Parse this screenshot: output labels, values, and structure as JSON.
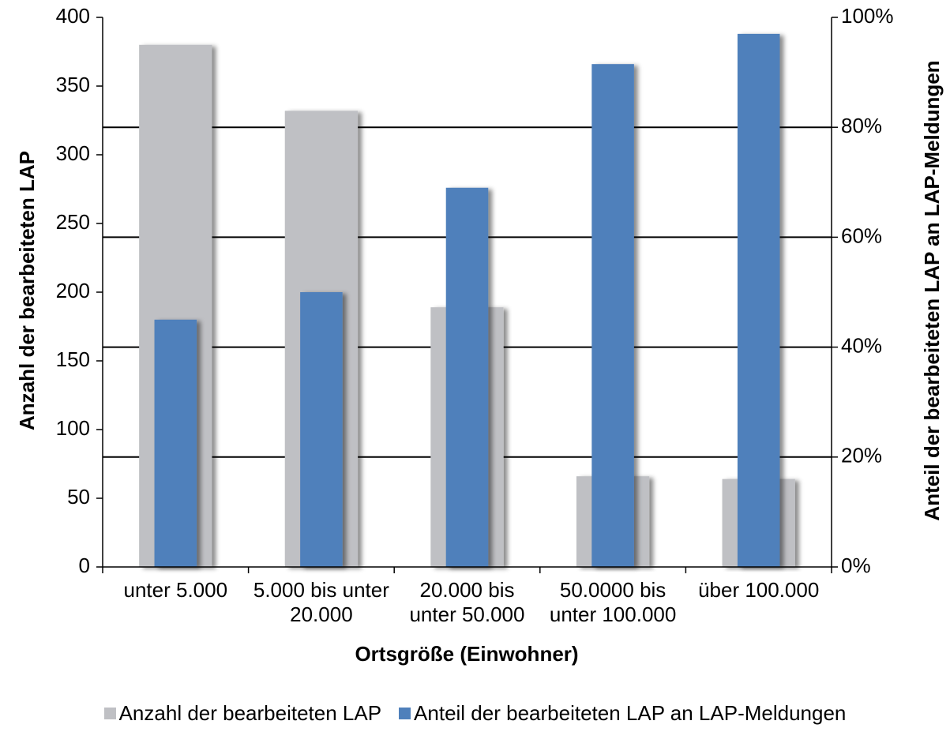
{
  "chart_data": {
    "type": "bar",
    "x_label": "Ortsgröße (Einwohner)",
    "y_label": "Anzahl der bearbeiteten LAP",
    "y2_label": "Anteil der bearbeiteten LAP an LAP-Meldungen",
    "categories": [
      "unter 5.000",
      "5.000 bis unter 20.000",
      "20.000 bis unter 50.000",
      "50.0000 bis unter 100.000",
      "über 100.000"
    ],
    "series": [
      {
        "name": "Anzahl der bearbeiteten LAP",
        "color": "#bfc0c4",
        "values": [
          380,
          332,
          189,
          66,
          64
        ]
      },
      {
        "name": "Anteil der bearbeiteten LAP an LAP-Meldungen",
        "color": "#4f80bb",
        "axis": "y2",
        "values": [
          45,
          50,
          69,
          91.5,
          97
        ]
      }
    ],
    "ylim": [
      0,
      400
    ],
    "yticks": [
      0,
      50,
      100,
      150,
      200,
      250,
      300,
      350,
      400
    ],
    "y2lim": [
      0,
      100
    ],
    "y2ticks": [
      {
        "value": 0,
        "label": "0%"
      },
      {
        "value": 20,
        "label": "20%"
      },
      {
        "value": 40,
        "label": "40%"
      },
      {
        "value": 60,
        "label": "60%"
      },
      {
        "value": 80,
        "label": "80%"
      },
      {
        "value": 100,
        "label": "100%"
      }
    ],
    "grid": true,
    "legend": "bottom"
  }
}
